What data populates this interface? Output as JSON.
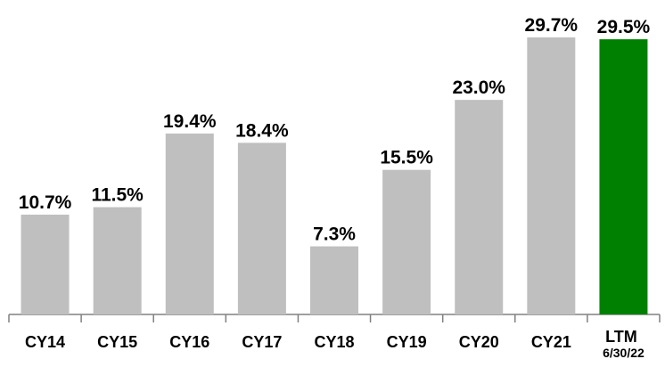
{
  "chart_data": {
    "type": "bar",
    "categories": [
      "CY14",
      "CY15",
      "CY16",
      "CY17",
      "CY18",
      "CY19",
      "CY20",
      "CY21",
      "LTM 6/30/22"
    ],
    "values": [
      10.7,
      11.5,
      19.4,
      18.4,
      7.3,
      15.5,
      23.0,
      29.7,
      29.5
    ],
    "value_labels": [
      "10.7%",
      "11.5%",
      "19.4%",
      "18.4%",
      "7.3%",
      "15.5%",
      "23.0%",
      "29.7%",
      "29.5%"
    ],
    "colors": [
      "#bfbfbf",
      "#bfbfbf",
      "#bfbfbf",
      "#bfbfbf",
      "#bfbfbf",
      "#bfbfbf",
      "#bfbfbf",
      "#bfbfbf",
      "#008000"
    ]
  }
}
